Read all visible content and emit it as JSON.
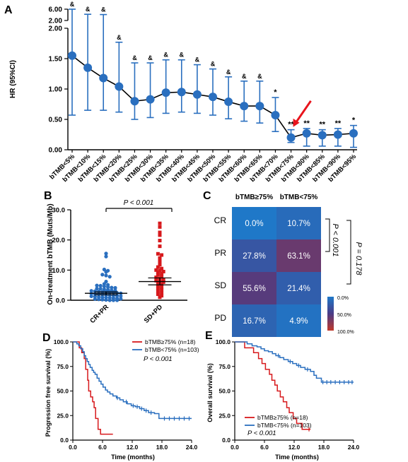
{
  "panels": {
    "A": {
      "letter": "A",
      "ylabel": "HR (95%CI)",
      "y_ticks_lower": [
        "0.00",
        "0.50",
        "1.00",
        "1.50",
        "2.00"
      ],
      "y_ticks_upper": [
        "2.00",
        "6.00"
      ],
      "categories": [
        "bTMB<5%",
        "bTMB<10%",
        "bTMB<15%",
        "bTMB<20%",
        "bTMB<25%",
        "bTMB<30%",
        "bTMB<35%",
        "bTMB<40%",
        "bTMB<45%",
        "bTMB<50%",
        "bTMB<55%",
        "bTMB<60%",
        "bTMB<65%",
        "bTMB<70%",
        "bTMB<75%",
        "bTMB<80%",
        "bTMB<85%",
        "bTMB<90%",
        "bTMB<95%"
      ],
      "hr": [
        1.55,
        1.35,
        1.18,
        1.04,
        0.8,
        0.83,
        0.94,
        0.95,
        0.91,
        0.87,
        0.79,
        0.72,
        0.72,
        0.57,
        0.2,
        0.27,
        0.24,
        0.25,
        0.27
      ],
      "lower": [
        0.57,
        0.65,
        0.65,
        0.62,
        0.5,
        0.53,
        0.6,
        0.62,
        0.6,
        0.57,
        0.51,
        0.47,
        0.44,
        0.3,
        0.12,
        0.06,
        0.06,
        0.06,
        0.04
      ],
      "upper": [
        6.0,
        4.2,
        4.1,
        1.77,
        1.43,
        1.43,
        1.48,
        1.48,
        1.4,
        1.33,
        1.2,
        1.13,
        1.13,
        0.86,
        0.33,
        0.35,
        0.33,
        0.35,
        0.4
      ],
      "upper_axis_max": 6.0,
      "marks": [
        "&",
        "&",
        "&",
        "&",
        "&",
        "&",
        "&",
        "&",
        "&",
        "&",
        "&",
        "&",
        "&",
        "*",
        "**",
        "**",
        "**",
        "**",
        "*"
      ],
      "highlight": "bTMB<75%",
      "color": "#2a6fbf",
      "line_color": "#000000",
      "arrow_color": "#e8141c"
    },
    "B": {
      "letter": "B",
      "ylabel": "On-treatment bTMB (Muts/Mb)",
      "y_ticks": [
        "0.0",
        "10.0",
        "20.0",
        "30.0"
      ],
      "groups": [
        "CR+PR",
        "SD+PD"
      ],
      "colors": [
        "#2a6fbf",
        "#d7191c"
      ],
      "p_label": "P < 0.001",
      "group1_values": [
        15.5,
        14.5,
        10.2,
        9.8,
        9.4,
        8.5,
        8.2,
        7.8,
        6.2,
        5.4,
        5.1,
        4.9,
        4.8,
        4.6,
        4.4,
        4.2,
        4.1,
        3.9,
        3.8,
        3.6,
        3.5,
        3.3,
        3.2,
        3.1,
        3.0,
        2.9,
        2.8,
        2.7,
        2.6,
        2.5,
        2.4,
        2.3,
        2.2,
        2.1,
        2.0,
        1.9,
        1.8,
        1.7,
        1.6,
        1.5,
        1.4,
        1.3,
        1.2,
        1.1,
        1.0,
        0.9,
        0.8,
        0.7,
        0.6,
        0.5,
        0.4,
        0.3,
        0.2,
        0.1,
        0,
        0,
        0
      ],
      "group1_mean": 2.3,
      "group1_sem": [
        1.8,
        2.8
      ],
      "group2_values": [
        25.5,
        24.3,
        22.5,
        21.6,
        19.8,
        17.9,
        15.4,
        15.0,
        14.0,
        13.4,
        12.6,
        11.8,
        11.0,
        10.5,
        10.0,
        9.8,
        9.5,
        9.2,
        8.8,
        8.4,
        8.0,
        7.6,
        7.2,
        6.8,
        6.5,
        6.2,
        6.0,
        5.6,
        5.2,
        4.8,
        4.3,
        4.0,
        3.5,
        3.0,
        2.5,
        2.0,
        1.5,
        1.0
      ],
      "group2_mean": 6.2,
      "group2_sem": [
        5.1,
        7.4
      ]
    },
    "C": {
      "letter": "C",
      "columns": [
        "bTMB≥75%",
        "bTMB<75%"
      ],
      "rows": [
        "CR",
        "PR",
        "SD",
        "PD"
      ],
      "cells": [
        [
          "0.0%",
          "10.7%"
        ],
        [
          "27.8%",
          "63.1%"
        ],
        [
          "55.6%",
          "21.4%"
        ],
        [
          "16.7%",
          "4.9%"
        ]
      ],
      "values": [
        [
          0.0,
          10.7
        ],
        [
          27.8,
          63.1
        ],
        [
          55.6,
          21.4
        ],
        [
          16.7,
          4.9
        ]
      ],
      "colorbar_ticks": [
        "0.0%",
        "50.0%",
        "100.0%"
      ],
      "p1": "P < 0.001",
      "p2": "P = 0.178",
      "color_low": "#1f78c8",
      "color_mid": "#4a3b86",
      "color_high": "#c0392b"
    },
    "D": {
      "letter": "D",
      "ylabel": "Progression free survival (%)",
      "xlabel": "Time (months)",
      "x_ticks": [
        "0.0",
        "6.0",
        "12.0",
        "18.0",
        "24.0"
      ],
      "y_ticks": [
        "0.0",
        "25.0",
        "50.0",
        "75.0",
        "100.0"
      ],
      "legend": [
        "bTMB≥75% (n=18)",
        "bTMB<75% (n=103)"
      ],
      "p_label": "P < 0.001",
      "series": [
        {
          "name": "bTMB≥75% (n=18)",
          "color": "#d7191c",
          "steps": [
            [
              0,
              100
            ],
            [
              1.3,
              94
            ],
            [
              1.8,
              89
            ],
            [
              2.3,
              83
            ],
            [
              2.6,
              72
            ],
            [
              3.0,
              61
            ],
            [
              3.2,
              50
            ],
            [
              3.6,
              44
            ],
            [
              4.0,
              39
            ],
            [
              4.3,
              33
            ],
            [
              4.6,
              22
            ],
            [
              5.1,
              11
            ],
            [
              5.6,
              6
            ],
            [
              6.6,
              6
            ],
            [
              8.1,
              6
            ]
          ],
          "censor": []
        },
        {
          "name": "bTMB<75% (n=103)",
          "color": "#2a6fbf",
          "steps": [
            [
              0,
              100
            ],
            [
              0.8,
              98
            ],
            [
              1.2,
              96
            ],
            [
              1.6,
              93
            ],
            [
              2.0,
              90
            ],
            [
              2.3,
              86
            ],
            [
              2.6,
              83
            ],
            [
              2.9,
              80
            ],
            [
              3.2,
              77
            ],
            [
              3.5,
              74
            ],
            [
              3.9,
              71
            ],
            [
              4.2,
              69
            ],
            [
              4.5,
              67
            ],
            [
              4.9,
              63
            ],
            [
              5.3,
              60
            ],
            [
              5.7,
              57
            ],
            [
              6.1,
              54
            ],
            [
              6.6,
              51
            ],
            [
              7.0,
              49
            ],
            [
              7.5,
              47
            ],
            [
              8.1,
              45
            ],
            [
              8.8,
              43
            ],
            [
              9.5,
              41
            ],
            [
              10.2,
              39
            ],
            [
              11.0,
              37
            ],
            [
              11.8,
              35
            ],
            [
              12.6,
              34
            ],
            [
              13.5,
              32
            ],
            [
              14.4,
              30
            ],
            [
              15.3,
              28
            ],
            [
              16.5,
              27
            ],
            [
              17.4,
              22
            ],
            [
              24.0,
              22
            ]
          ],
          "censor": [
            [
              9.0,
              43
            ],
            [
              10.8,
              39
            ],
            [
              12.2,
              35
            ],
            [
              13.0,
              34
            ],
            [
              13.9,
              32
            ],
            [
              14.8,
              30
            ],
            [
              15.8,
              28
            ],
            [
              18.5,
              22
            ],
            [
              19.5,
              22
            ],
            [
              20.5,
              22
            ],
            [
              21.5,
              22
            ],
            [
              22.5,
              22
            ],
            [
              23.5,
              22
            ]
          ]
        }
      ]
    },
    "E": {
      "letter": "E",
      "ylabel": "Overall survival (%)",
      "xlabel": "Time (months)",
      "x_ticks": [
        "0.0",
        "6.0",
        "12.0",
        "18.0",
        "24.0"
      ],
      "y_ticks": [
        "0.0",
        "25.0",
        "50.0",
        "75.0",
        "100.0"
      ],
      "legend": [
        "bTMB≥75% (n=18)",
        "bTMB<75% (n=103)"
      ],
      "p_label": "P < 0.001",
      "series": [
        {
          "name": "bTMB≥75% (n=18)",
          "color": "#d7191c",
          "steps": [
            [
              0,
              100
            ],
            [
              2.0,
              94
            ],
            [
              3.8,
              89
            ],
            [
              4.8,
              83
            ],
            [
              5.5,
              78
            ],
            [
              6.2,
              72
            ],
            [
              7.0,
              67
            ],
            [
              7.5,
              61
            ],
            [
              8.1,
              56
            ],
            [
              8.6,
              50
            ],
            [
              9.2,
              44
            ],
            [
              9.8,
              39
            ],
            [
              10.5,
              33
            ],
            [
              11.0,
              28
            ],
            [
              11.8,
              22
            ],
            [
              12.5,
              17
            ],
            [
              13.6,
              11
            ],
            [
              14.5,
              11
            ],
            [
              15.3,
              11
            ]
          ],
          "censor": [
            [
              15.0,
              11
            ]
          ]
        },
        {
          "name": "bTMB<75% (n=103)",
          "color": "#2a6fbf",
          "steps": [
            [
              0,
              100
            ],
            [
              2.5,
              98
            ],
            [
              3.5,
              96
            ],
            [
              4.5,
              95
            ],
            [
              5.3,
              93
            ],
            [
              6.0,
              91
            ],
            [
              6.8,
              90
            ],
            [
              7.6,
              88
            ],
            [
              8.3,
              86
            ],
            [
              9.1,
              84
            ],
            [
              9.9,
              82
            ],
            [
              10.8,
              80
            ],
            [
              11.7,
              78
            ],
            [
              12.5,
              76
            ],
            [
              13.3,
              74
            ],
            [
              14.2,
              72
            ],
            [
              15.3,
              70
            ],
            [
              16.0,
              66
            ],
            [
              16.5,
              63
            ],
            [
              17.5,
              59
            ],
            [
              24.0,
              59
            ]
          ],
          "censor": [
            [
              8.8,
              86
            ],
            [
              11.2,
              80
            ],
            [
              12.9,
              76
            ],
            [
              14.7,
              72
            ],
            [
              17.8,
              59
            ],
            [
              18.6,
              59
            ],
            [
              19.4,
              59
            ],
            [
              20.3,
              59
            ],
            [
              21.2,
              59
            ],
            [
              22.1,
              59
            ],
            [
              23.0,
              59
            ],
            [
              23.7,
              59
            ]
          ]
        }
      ]
    }
  },
  "chart_data": [
    {
      "type": "scatter",
      "panel": "A",
      "ylabel": "HR (95%CI)",
      "categories": [
        "bTMB<5%",
        "bTMB<10%",
        "bTMB<15%",
        "bTMB<20%",
        "bTMB<25%",
        "bTMB<30%",
        "bTMB<35%",
        "bTMB<40%",
        "bTMB<45%",
        "bTMB<50%",
        "bTMB<55%",
        "bTMB<60%",
        "bTMB<65%",
        "bTMB<70%",
        "bTMB<75%",
        "bTMB<80%",
        "bTMB<85%",
        "bTMB<90%",
        "bTMB<95%"
      ],
      "values": [
        1.55,
        1.35,
        1.18,
        1.04,
        0.8,
        0.83,
        0.94,
        0.95,
        0.91,
        0.87,
        0.79,
        0.72,
        0.72,
        0.57,
        0.2,
        0.27,
        0.24,
        0.25,
        0.27
      ],
      "ylim": [
        0,
        6.0
      ]
    },
    {
      "type": "scatter",
      "panel": "B",
      "ylabel": "On-treatment bTMB (Muts/Mb)",
      "categories": [
        "CR+PR",
        "SD+PD"
      ],
      "ylim": [
        0,
        30
      ]
    },
    {
      "type": "heatmap",
      "panel": "C",
      "columns": [
        "bTMB≥75%",
        "bTMB<75%"
      ],
      "rows": [
        "CR",
        "PR",
        "SD",
        "PD"
      ],
      "values": [
        [
          0.0,
          10.7
        ],
        [
          27.8,
          63.1
        ],
        [
          55.6,
          21.4
        ],
        [
          16.7,
          4.9
        ]
      ]
    },
    {
      "type": "line",
      "panel": "D",
      "xlabel": "Time (months)",
      "ylabel": "Progression free survival (%)",
      "xlim": [
        0,
        24
      ],
      "ylim": [
        0,
        100
      ],
      "series": [
        {
          "name": "bTMB≥75% (n=18)"
        },
        {
          "name": "bTMB<75% (n=103)"
        }
      ]
    },
    {
      "type": "line",
      "panel": "E",
      "xlabel": "Time (months)",
      "ylabel": "Overall survival (%)",
      "xlim": [
        0,
        24
      ],
      "ylim": [
        0,
        100
      ],
      "series": [
        {
          "name": "bTMB≥75% (n=18)"
        },
        {
          "name": "bTMB<75% (n=103)"
        }
      ]
    }
  ]
}
